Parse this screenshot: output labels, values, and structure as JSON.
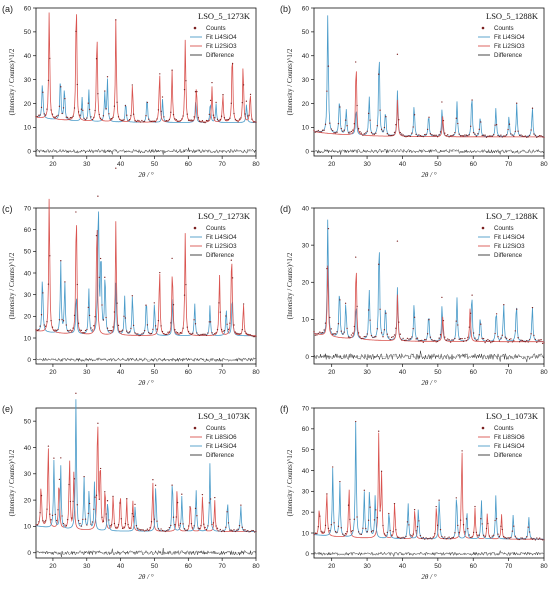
{
  "chart_data": [
    {
      "type": "scatter",
      "panel_label": "(a)",
      "title": "LSO_5_1273K",
      "xlabel": "2θ / °",
      "ylabel": "(Intensity / Counts)^1/2",
      "xlim": [
        15,
        80
      ],
      "ylim": [
        -2,
        60
      ],
      "xticks": [
        20,
        30,
        40,
        50,
        60,
        70,
        80
      ],
      "yticks": [
        0,
        10,
        20,
        30,
        40,
        50,
        60
      ],
      "legend": [
        "Counts",
        "Fit Li4SiO4",
        "Fit Li2SiO3",
        "Difference"
      ],
      "legend_position": "top-right",
      "background_level": 12,
      "difference_offset": 0,
      "series": [
        {
          "name": "Fit Li4SiO4",
          "color": "#4a9bc9",
          "peaks": [
            [
              16.9,
              16
            ],
            [
              22.2,
              19
            ],
            [
              23.4,
              14
            ],
            [
              28.6,
              10
            ],
            [
              30.6,
              14
            ],
            [
              35.3,
              12
            ],
            [
              36.1,
              18
            ],
            [
              41.5,
              9
            ],
            [
              47.8,
              11
            ],
            [
              52.4,
              10
            ],
            [
              62.2,
              10
            ],
            [
              66.5,
              9
            ],
            [
              68.2,
              8
            ],
            [
              77.2,
              8
            ]
          ]
        },
        {
          "name": "Fit Li2SiO3",
          "color": "#d9534f",
          "peaks": [
            [
              18.9,
              47
            ],
            [
              26.9,
              55
            ],
            [
              33.0,
              40
            ],
            [
              38.6,
              45
            ],
            [
              43.5,
              17
            ],
            [
              51.5,
              22
            ],
            [
              55.2,
              22
            ],
            [
              59.1,
              35
            ],
            [
              62.4,
              16
            ],
            [
              67.0,
              15
            ],
            [
              70.2,
              12
            ],
            [
              73.0,
              32
            ],
            [
              76.2,
              25
            ],
            [
              78.3,
              13
            ]
          ]
        }
      ]
    },
    {
      "type": "scatter",
      "panel_label": "(b)",
      "title": "LSO_5_1288K",
      "xlabel": "2θ / °",
      "ylabel": "(Intensity / Counts)^1/2",
      "xlim": [
        15,
        80
      ],
      "ylim": [
        -2,
        60
      ],
      "xticks": [
        20,
        30,
        40,
        50,
        60,
        70,
        80
      ],
      "yticks": [
        0,
        10,
        20,
        30,
        40,
        50,
        60
      ],
      "legend": [
        "Counts",
        "Fit Li4SiO4",
        "Fit Li2SiO3",
        "Difference"
      ],
      "legend_position": "top-right",
      "background_level": 6,
      "difference_offset": 0,
      "series": [
        {
          "name": "Fit Li4SiO4",
          "color": "#4a9bc9",
          "peaks": [
            [
              18.9,
              52
            ],
            [
              22.2,
              16
            ],
            [
              24.1,
              11
            ],
            [
              26.9,
              12
            ],
            [
              30.6,
              17
            ],
            [
              33.4,
              38
            ],
            [
              35.2,
              11
            ],
            [
              38.6,
              20
            ],
            [
              43.3,
              14
            ],
            [
              47.4,
              10
            ],
            [
              51.2,
              12
            ],
            [
              55.4,
              15
            ],
            [
              59.6,
              19
            ],
            [
              62.0,
              9
            ],
            [
              66.4,
              12
            ],
            [
              70.1,
              9
            ],
            [
              72.3,
              14
            ],
            [
              76.7,
              13
            ]
          ]
        },
        {
          "name": "Fit Li2SiO3",
          "color": "#d9534f",
          "peaks": [
            [
              26.9,
              33
            ],
            [
              38.6,
              16
            ],
            [
              51.4,
              9
            ]
          ]
        }
      ]
    },
    {
      "type": "scatter",
      "panel_label": "(c)",
      "title": "LSO_7_1273K",
      "xlabel": "2θ / °",
      "ylabel": "(Intensity / Counts)^1/2",
      "xlim": [
        15,
        80
      ],
      "ylim": [
        -2,
        70
      ],
      "xticks": [
        20,
        30,
        40,
        50,
        60,
        70,
        80
      ],
      "yticks": [
        0,
        10,
        20,
        30,
        40,
        50,
        60,
        70
      ],
      "legend": [
        "Counts",
        "Fit Li4SiO4",
        "Fit Li2SiO3",
        "Difference"
      ],
      "legend_position": "top-right",
      "background_level": 11,
      "difference_offset": 0,
      "series": [
        {
          "name": "Fit Li4SiO4",
          "color": "#4a9bc9",
          "peaks": [
            [
              16.9,
              27
            ],
            [
              22.3,
              33
            ],
            [
              23.5,
              24
            ],
            [
              26.9,
              20
            ],
            [
              30.6,
              22
            ],
            [
              33.4,
              67
            ],
            [
              34.2,
              40
            ],
            [
              35.4,
              30
            ],
            [
              38.6,
              25
            ],
            [
              41.2,
              18
            ],
            [
              43.5,
              20
            ],
            [
              47.6,
              18
            ],
            [
              50.0,
              16
            ],
            [
              55.4,
              17
            ],
            [
              61.9,
              15
            ],
            [
              66.4,
              14
            ],
            [
              71.2,
              13
            ],
            [
              73.0,
              20
            ]
          ]
        },
        {
          "name": "Fit Li2SiO3",
          "color": "#d9534f",
          "peaks": [
            [
              18.9,
              65
            ],
            [
              26.9,
              62
            ],
            [
              33.0,
              58
            ],
            [
              38.6,
              55
            ],
            [
              51.5,
              32
            ],
            [
              55.3,
              33
            ],
            [
              59.1,
              48
            ],
            [
              69.2,
              29
            ],
            [
              72.8,
              42
            ],
            [
              76.3,
              15
            ]
          ]
        }
      ]
    },
    {
      "type": "scatter",
      "panel_label": "(d)",
      "title": "LSO_7_1288K",
      "xlabel": "2θ / °",
      "ylabel": "(Intensity / Counts)^1/2",
      "xlim": [
        15,
        80
      ],
      "ylim": [
        -2,
        40
      ],
      "xticks": [
        20,
        30,
        40,
        50,
        60,
        70,
        80
      ],
      "yticks": [
        0,
        10,
        20,
        30,
        40
      ],
      "legend": [
        "Counts",
        "Fit Li4SiO4",
        "Fit Li2SiO3",
        "Difference"
      ],
      "legend_position": "top-right",
      "background_level": 4,
      "difference_offset": 0,
      "series": [
        {
          "name": "Fit Li4SiO4",
          "color": "#4a9bc9",
          "peaks": [
            [
              18.9,
              33
            ],
            [
              22.2,
              14
            ],
            [
              24.0,
              10
            ],
            [
              26.9,
              10
            ],
            [
              30.6,
              14
            ],
            [
              33.4,
              29
            ],
            [
              35.2,
              10
            ],
            [
              38.6,
              15
            ],
            [
              43.3,
              11
            ],
            [
              47.4,
              8
            ],
            [
              51.2,
              10
            ],
            [
              55.4,
              12
            ],
            [
              59.6,
              14
            ],
            [
              62.0,
              7
            ],
            [
              66.5,
              9
            ],
            [
              68.6,
              10
            ],
            [
              72.2,
              11
            ],
            [
              76.7,
              10
            ]
          ]
        },
        {
          "name": "Fit Li2SiO3",
          "color": "#d9534f",
          "peaks": [
            [
              18.9,
              20
            ],
            [
              26.9,
              22
            ],
            [
              38.6,
              13
            ],
            [
              51.4,
              7
            ],
            [
              59.1,
              9
            ]
          ]
        }
      ]
    },
    {
      "type": "scatter",
      "panel_label": "(e)",
      "title": "LSO_3_1073K",
      "xlabel": "2θ / °",
      "ylabel": "(Intensity / Counts)^1/2",
      "xlim": [
        15,
        80
      ],
      "ylim": [
        -2,
        55
      ],
      "xticks": [
        20,
        30,
        40,
        50,
        60,
        70,
        80
      ],
      "yticks": [
        0,
        10,
        20,
        30,
        40,
        50
      ],
      "legend": [
        "Counts",
        "Fit Li8SiO6",
        "Fit Li4SiO4",
        "Difference"
      ],
      "legend_position": "top-right",
      "background_level": 8,
      "difference_offset": 0,
      "series": [
        {
          "name": "Fit Li8SiO6",
          "color": "#d9534f",
          "peaks": [
            [
              16.5,
              17
            ],
            [
              18.6,
              33
            ],
            [
              21.8,
              20
            ],
            [
              24.9,
              28
            ],
            [
              26.2,
              22
            ],
            [
              33.2,
              46
            ],
            [
              34.0,
              27
            ],
            [
              35.4,
              17
            ],
            [
              37.8,
              14
            ],
            [
              39.9,
              15
            ],
            [
              41.8,
              12
            ],
            [
              43.6,
              12
            ],
            [
              49.5,
              19
            ],
            [
              56.7,
              17
            ],
            [
              60.6,
              12
            ],
            [
              64.2,
              14
            ],
            [
              67.8,
              12
            ]
          ]
        },
        {
          "name": "Fit Li4SiO4",
          "color": "#4a9bc9",
          "peaks": [
            [
              20.3,
              26
            ],
            [
              22.3,
              24
            ],
            [
              26.8,
              50
            ],
            [
              29.2,
              20
            ],
            [
              30.7,
              16
            ],
            [
              32.3,
              19
            ],
            [
              36.2,
              12
            ],
            [
              44.3,
              10
            ],
            [
              50.4,
              18
            ],
            [
              55.3,
              21
            ],
            [
              58.1,
              14
            ],
            [
              62.3,
              16
            ],
            [
              66.4,
              26
            ],
            [
              71.6,
              12
            ],
            [
              75.5,
              10
            ]
          ]
        }
      ]
    },
    {
      "type": "scatter",
      "panel_label": "(f)",
      "title": "LSO_1_1073K",
      "xlabel": "2θ / °",
      "ylabel": "(Intensity / Counts)^1/2",
      "xlim": [
        15,
        80
      ],
      "ylim": [
        -2,
        70
      ],
      "xticks": [
        20,
        30,
        40,
        50,
        60,
        70,
        80
      ],
      "yticks": [
        0,
        10,
        20,
        30,
        40,
        50,
        60,
        70
      ],
      "legend": [
        "Counts",
        "Fit Li8SiO6",
        "Fit Li4SiO4",
        "Difference"
      ],
      "legend_position": "top-right",
      "background_level": 7,
      "difference_offset": 0,
      "series": [
        {
          "name": "Fit Li8SiO6",
          "color": "#d9534f",
          "peaks": [
            [
              16.5,
              14
            ],
            [
              18.6,
              22
            ],
            [
              24.9,
              25
            ],
            [
              33.3,
              50
            ],
            [
              34.1,
              30
            ],
            [
              37.8,
              18
            ],
            [
              43.5,
              15
            ],
            [
              49.6,
              17
            ],
            [
              56.8,
              44
            ],
            [
              60.5,
              15
            ],
            [
              64.0,
              13
            ],
            [
              68.0,
              12
            ]
          ]
        },
        {
          "name": "Fit Li4SiO4",
          "color": "#4a9bc9",
          "peaks": [
            [
              20.3,
              33
            ],
            [
              22.3,
              26
            ],
            [
              26.8,
              56
            ],
            [
              29.2,
              22
            ],
            [
              30.7,
              24
            ],
            [
              32.3,
              21
            ],
            [
              36.2,
              14
            ],
            [
              41.6,
              17
            ],
            [
              44.5,
              15
            ],
            [
              50.4,
              20
            ],
            [
              55.3,
              23
            ],
            [
              58.2,
              14
            ],
            [
              62.3,
              19
            ],
            [
              66.4,
              21
            ],
            [
              71.3,
              12
            ],
            [
              75.7,
              11
            ]
          ]
        }
      ]
    }
  ],
  "legend_labels": {
    "counts": "Counts",
    "difference": "Difference"
  },
  "colors": {
    "counts": "#7a1f1f",
    "difference": "#333333",
    "axis": "#111111"
  }
}
